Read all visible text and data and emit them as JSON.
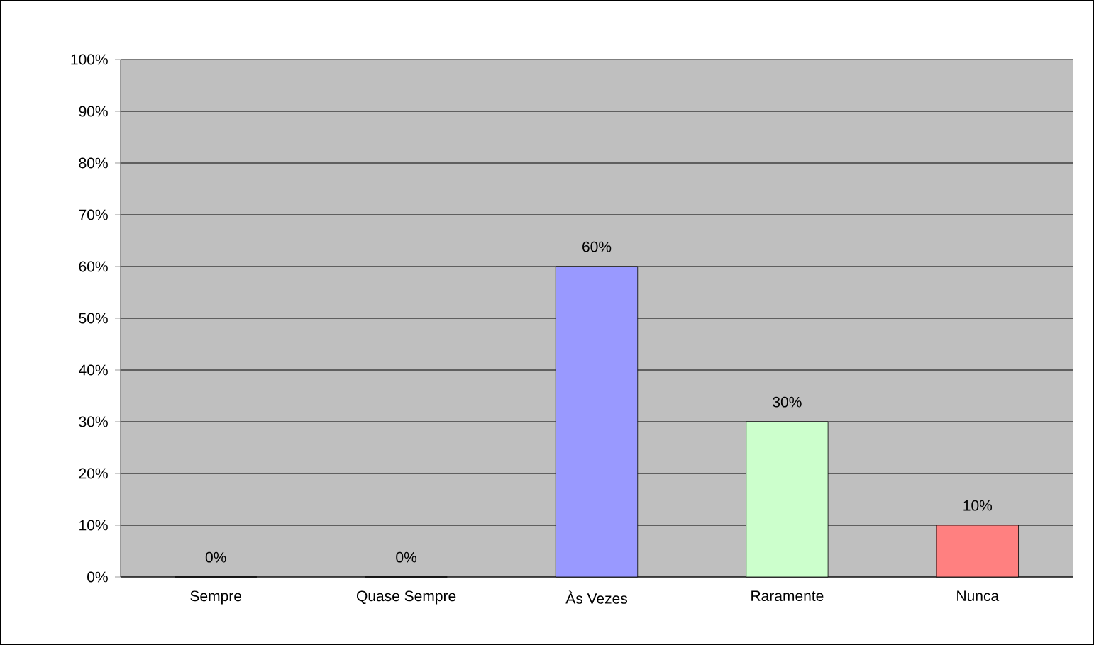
{
  "chart_data": {
    "type": "bar",
    "categories": [
      "Sempre",
      "Quase Sempre",
      "Às Vezes",
      "Raramente",
      "Nunca"
    ],
    "values": [
      0,
      0,
      60,
      30,
      10
    ],
    "value_labels": [
      "0%",
      "0%",
      "60%",
      "30%",
      "10%"
    ],
    "colors": [
      "#9999ff",
      "#9999ff",
      "#9999ff",
      "#ccffcc",
      "#ff8080"
    ],
    "ylim": [
      0,
      100
    ],
    "yticks": [
      {
        "value": 0,
        "label": "0%"
      },
      {
        "value": 10,
        "label": "10%"
      },
      {
        "value": 20,
        "label": "20%"
      },
      {
        "value": 30,
        "label": "30%"
      },
      {
        "value": 40,
        "label": "40%"
      },
      {
        "value": 50,
        "label": "50%"
      },
      {
        "value": 60,
        "label": "60%"
      },
      {
        "value": 70,
        "label": "70%"
      },
      {
        "value": 80,
        "label": "80%"
      },
      {
        "value": 90,
        "label": "90%"
      },
      {
        "value": 100,
        "label": "100%"
      }
    ],
    "grid": "y"
  }
}
